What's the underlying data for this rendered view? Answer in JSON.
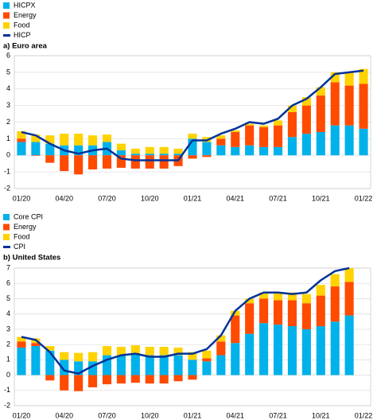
{
  "chart_data": [
    {
      "type": "bar",
      "title": "a) Euro area",
      "categories": [
        "01/20",
        null,
        null,
        "04/20",
        null,
        null,
        "07/20",
        null,
        null,
        "10/20",
        null,
        null,
        "01/21",
        null,
        null,
        "04/21",
        null,
        null,
        "07/21",
        null,
        null,
        "10/21",
        null,
        null,
        "01/22"
      ],
      "series": [
        {
          "name": "HICPX",
          "color": "#00b1ea",
          "values": [
            0.8,
            0.8,
            0.7,
            0.6,
            0.6,
            0.6,
            0.8,
            0.3,
            0.1,
            0.1,
            0.1,
            0.1,
            1.0,
            0.8,
            0.6,
            0.5,
            0.6,
            0.5,
            0.5,
            1.1,
            1.3,
            1.4,
            1.8,
            1.8,
            1.6
          ]
        },
        {
          "name": "Energy",
          "color": "#ff4b00",
          "values": [
            0.2,
            -0.03,
            -0.45,
            -0.95,
            -1.15,
            -0.85,
            -0.8,
            -0.75,
            -0.8,
            -0.8,
            -0.8,
            -0.65,
            -0.2,
            -0.1,
            0.4,
            0.9,
            1.2,
            1.2,
            1.3,
            1.5,
            1.7,
            2.2,
            2.6,
            2.4,
            2.7
          ]
        },
        {
          "name": "Food",
          "color": "#ffd200",
          "values": [
            0.45,
            0.45,
            0.5,
            0.7,
            0.7,
            0.6,
            0.45,
            0.4,
            0.3,
            0.4,
            0.4,
            0.3,
            0.3,
            0.3,
            0.2,
            0.1,
            0.1,
            0.1,
            0.3,
            0.4,
            0.5,
            0.5,
            0.6,
            0.8,
            0.9
          ]
        },
        {
          "name": "HICP",
          "color": "#003299",
          "type": "line",
          "values": [
            1.4,
            1.2,
            0.7,
            0.3,
            0.1,
            0.3,
            0.4,
            -0.2,
            -0.3,
            -0.3,
            -0.3,
            -0.3,
            0.9,
            0.9,
            1.3,
            1.6,
            2.0,
            1.9,
            2.2,
            3.0,
            3.4,
            4.1,
            4.9,
            5.0,
            5.1
          ]
        }
      ],
      "ylim": [
        -2,
        6
      ],
      "yticks": [
        -2,
        -1,
        0,
        1,
        2,
        3,
        4,
        5,
        6
      ],
      "grid": true
    },
    {
      "type": "bar",
      "title": "b) United States",
      "categories": [
        "01/20",
        null,
        null,
        "04/20",
        null,
        null,
        "07/20",
        null,
        null,
        "10/20",
        null,
        null,
        "01/21",
        null,
        null,
        "04/21",
        null,
        null,
        "07/21",
        null,
        null,
        "10/21",
        null,
        null,
        "01/22"
      ],
      "series": [
        {
          "name": "Core CPI",
          "color": "#00b1ea",
          "values": [
            1.8,
            1.9,
            1.6,
            1.0,
            0.9,
            0.9,
            1.3,
            1.3,
            1.4,
            1.3,
            1.3,
            1.3,
            1.0,
            0.9,
            1.3,
            2.1,
            2.7,
            3.4,
            3.3,
            3.2,
            3.0,
            3.2,
            3.5,
            3.9,
            null
          ]
        },
        {
          "name": "Energy",
          "color": "#ff4b00",
          "values": [
            0.4,
            0.2,
            -0.35,
            -1.0,
            -1.05,
            -0.8,
            -0.6,
            -0.55,
            -0.5,
            -0.55,
            -0.55,
            -0.4,
            -0.3,
            0.2,
            0.9,
            1.8,
            2.0,
            1.6,
            1.6,
            1.7,
            1.7,
            2.0,
            2.3,
            2.2,
            null
          ]
        },
        {
          "name": "Food",
          "color": "#ffd200",
          "values": [
            0.3,
            0.3,
            0.3,
            0.5,
            0.55,
            0.6,
            0.6,
            0.55,
            0.55,
            0.55,
            0.55,
            0.5,
            0.5,
            0.5,
            0.4,
            0.3,
            0.3,
            0.4,
            0.5,
            0.5,
            0.6,
            0.7,
            0.8,
            0.9,
            null
          ]
        },
        {
          "name": "CPI",
          "color": "#003299",
          "type": "line",
          "values": [
            2.5,
            2.3,
            1.5,
            0.3,
            0.1,
            0.6,
            1.0,
            1.3,
            1.4,
            1.2,
            1.2,
            1.4,
            1.4,
            1.7,
            2.6,
            4.2,
            5.0,
            5.4,
            5.4,
            5.3,
            5.4,
            6.2,
            6.8,
            7.0,
            null
          ]
        }
      ],
      "ylim": [
        -2,
        7
      ],
      "yticks": [
        -2,
        -1,
        0,
        1,
        2,
        3,
        4,
        5,
        6,
        7
      ],
      "grid": true
    }
  ]
}
